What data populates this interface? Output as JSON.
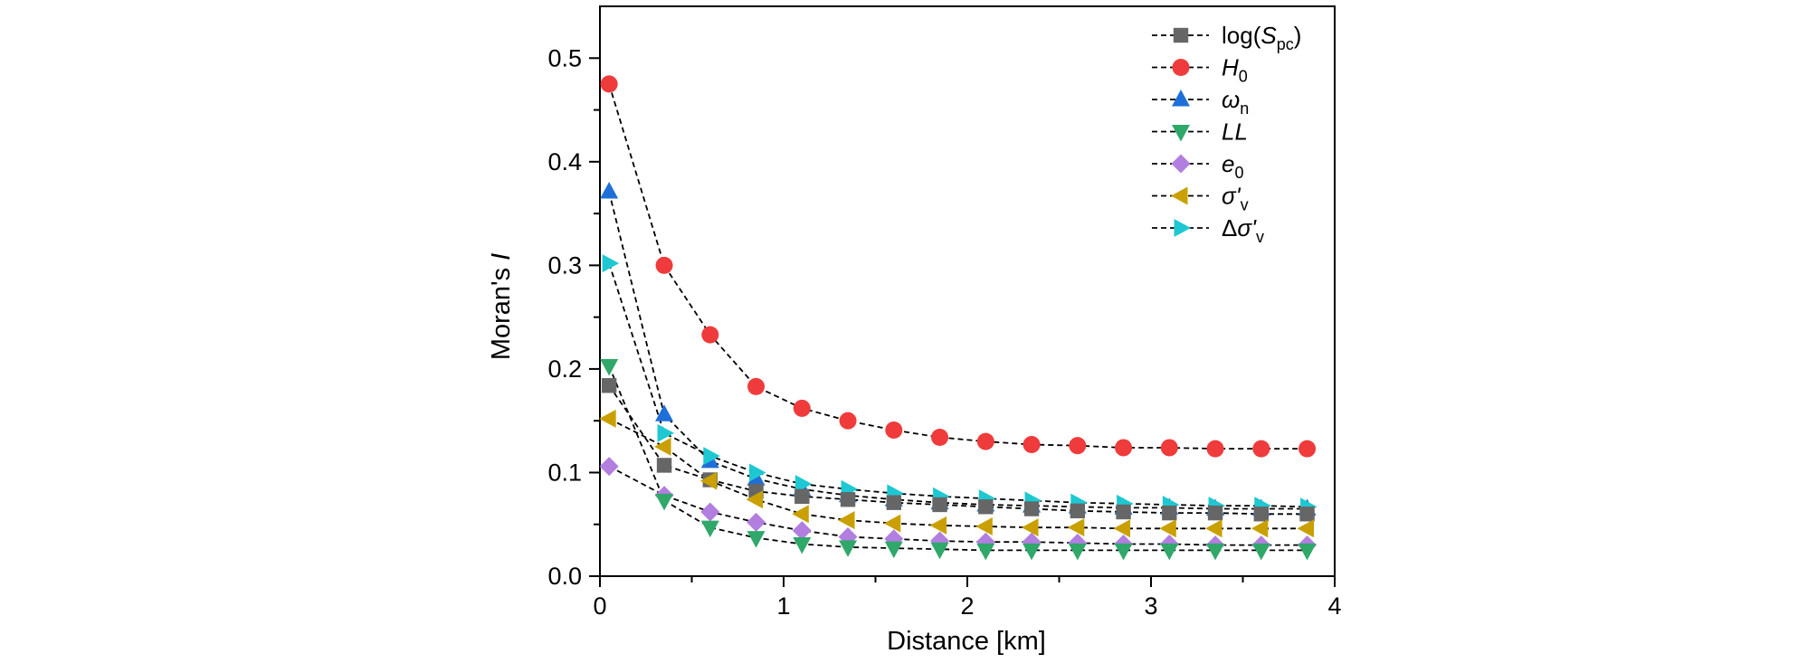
{
  "chart_data": {
    "type": "scatter",
    "xlabel": "Distance [km]",
    "ylabel": "Moran's I",
    "xlim": [
      0,
      4
    ],
    "ylim": [
      0,
      0.55
    ],
    "x_ticks": [
      "0",
      "1",
      "2",
      "3",
      "4"
    ],
    "y_ticks": [
      "0.0",
      "0.1",
      "0.2",
      "0.3",
      "0.4",
      "0.5"
    ],
    "x": [
      0.05,
      0.35,
      0.6,
      0.85,
      1.1,
      1.35,
      1.6,
      1.85,
      2.1,
      2.35,
      2.6,
      2.85,
      3.1,
      3.35,
      3.6,
      3.85
    ],
    "grid": false,
    "legend_position": "top-right",
    "series": [
      {
        "name": "log(Spc)",
        "label_main": "log(S",
        "label_sub": "pc",
        "label_tail": ")",
        "marker": "square",
        "color": "#666666",
        "values": [
          0.184,
          0.107,
          0.093,
          0.082,
          0.077,
          0.074,
          0.071,
          0.069,
          0.067,
          0.065,
          0.063,
          0.062,
          0.061,
          0.061,
          0.06,
          0.06
        ]
      },
      {
        "name": "H0",
        "label_main": "H",
        "label_sub": "0",
        "label_tail": "",
        "italic": true,
        "marker": "circle",
        "color": "#ef3b3b",
        "values": [
          0.475,
          0.3,
          0.233,
          0.183,
          0.162,
          0.15,
          0.141,
          0.134,
          0.13,
          0.127,
          0.126,
          0.124,
          0.124,
          0.123,
          0.123,
          0.123
        ]
      },
      {
        "name": "ωn",
        "label_main": "ω",
        "label_sub": "n",
        "label_tail": "",
        "italic": true,
        "marker": "triangle-up",
        "color": "#1f6fd8",
        "values": [
          0.371,
          0.156,
          0.111,
          0.094,
          0.084,
          0.078,
          0.074,
          0.071,
          0.069,
          0.068,
          0.067,
          0.066,
          0.066,
          0.065,
          0.065,
          0.065
        ]
      },
      {
        "name": "LL",
        "label_main": "LL",
        "label_sub": "",
        "label_tail": "",
        "italic": true,
        "marker": "triangle-down",
        "color": "#2fa86a",
        "values": [
          0.203,
          0.073,
          0.047,
          0.037,
          0.031,
          0.028,
          0.027,
          0.026,
          0.025,
          0.025,
          0.025,
          0.025,
          0.025,
          0.025,
          0.025,
          0.025
        ]
      },
      {
        "name": "e0",
        "label_main": "e",
        "label_sub": "0",
        "label_tail": "",
        "italic": true,
        "marker": "diamond",
        "color": "#b27ee0",
        "values": [
          0.106,
          0.078,
          0.062,
          0.052,
          0.044,
          0.038,
          0.036,
          0.034,
          0.033,
          0.033,
          0.032,
          0.031,
          0.031,
          0.03,
          0.03,
          0.03
        ]
      },
      {
        "name": "σ'v",
        "label_main": "σ'",
        "label_sub": "v",
        "label_tail": "",
        "italic": true,
        "marker": "triangle-left",
        "color": "#c9a000",
        "values": [
          0.152,
          0.125,
          0.092,
          0.074,
          0.06,
          0.054,
          0.051,
          0.049,
          0.048,
          0.047,
          0.047,
          0.046,
          0.046,
          0.046,
          0.046,
          0.046
        ]
      },
      {
        "name": "Δσ'v",
        "label_main": "Δσ'",
        "label_sub": "v",
        "label_tail": "",
        "italic": true,
        "marker": "triangle-right",
        "color": "#1ec8d2",
        "values": [
          0.302,
          0.138,
          0.116,
          0.1,
          0.089,
          0.084,
          0.08,
          0.077,
          0.075,
          0.073,
          0.071,
          0.07,
          0.069,
          0.068,
          0.068,
          0.067
        ]
      }
    ]
  }
}
